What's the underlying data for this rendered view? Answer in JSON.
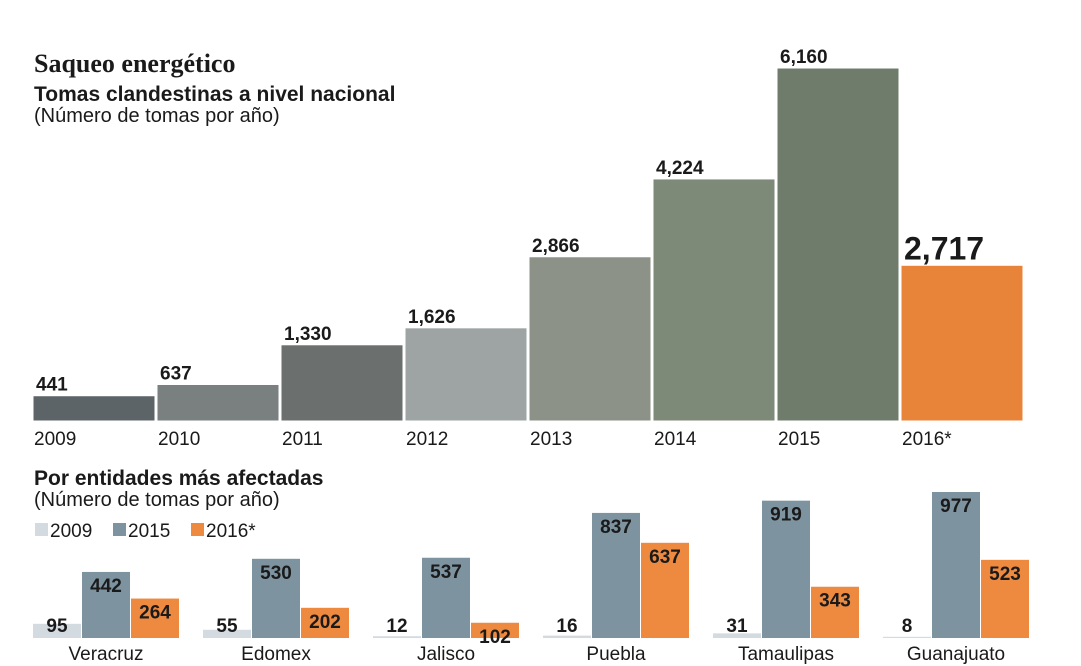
{
  "title": "Saqueo energético",
  "chart_data": [
    {
      "type": "bar",
      "title": "Tomas clandestinas a nivel nacional",
      "subtitle": "(Número de tomas por año)",
      "categories": [
        "2009",
        "2010",
        "2011",
        "2012",
        "2013",
        "2014",
        "2015",
        "2016*"
      ],
      "values": [
        441,
        637,
        1330,
        1626,
        2866,
        4224,
        6160,
        2717
      ],
      "value_labels": [
        "441",
        "637",
        "1,330",
        "1,626",
        "2,866",
        "4,224",
        "6,160",
        "2,717"
      ],
      "colors": [
        "#5d6468",
        "#7a7f80",
        "#6b6f6e",
        "#9ea4a3",
        "#8c9288",
        "#7d8a78",
        "#6f7c6b",
        "#e8843a"
      ]
    },
    {
      "type": "grouped-bar",
      "title": "Por entidades más afectadas",
      "subtitle": "(Número de tomas por año)",
      "categories": [
        "Veracruz",
        "Edomex",
        "Jalisco",
        "Puebla",
        "Tamaulipas",
        "Guanajuato"
      ],
      "series": [
        {
          "name": "2009",
          "color": "#d3dbe1",
          "values": [
            95,
            55,
            12,
            16,
            31,
            8
          ]
        },
        {
          "name": "2015",
          "color": "#7d93a0",
          "values": [
            442,
            530,
            537,
            837,
            919,
            977
          ]
        },
        {
          "name": "2016*",
          "color": "#ee8a40",
          "values": [
            264,
            202,
            102,
            637,
            343,
            523
          ]
        }
      ]
    }
  ]
}
